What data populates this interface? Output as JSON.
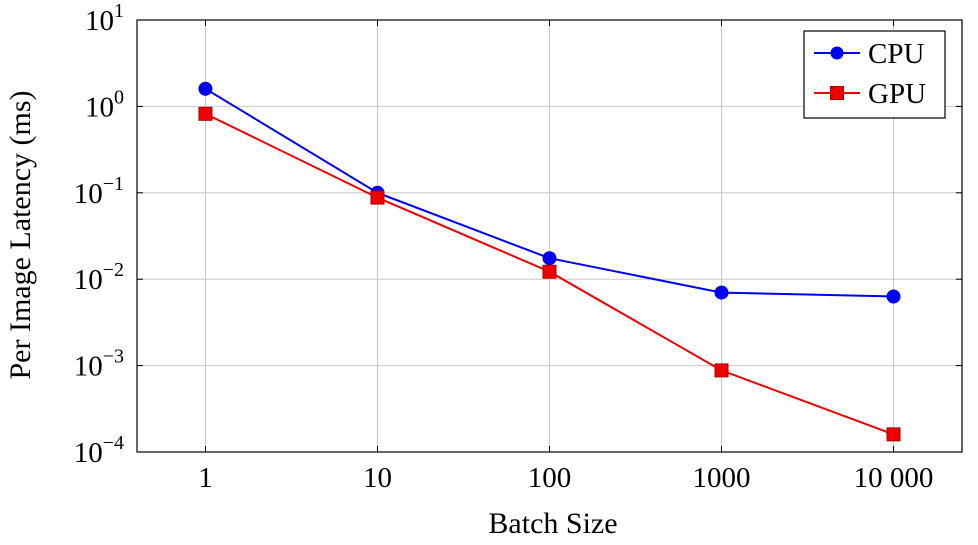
{
  "chart_data": {
    "type": "line",
    "xlabel": "Batch Size",
    "ylabel": "Per Image Latency (ms)",
    "x_scale": "log",
    "y_scale": "log",
    "x": [
      1,
      10,
      100,
      1000,
      10000
    ],
    "x_tick_labels": [
      "1",
      "10",
      "100",
      "1000",
      "10 000"
    ],
    "y_ticks": [
      {
        "value": 0.0001,
        "base": "10",
        "exp": "−4"
      },
      {
        "value": 0.001,
        "base": "10",
        "exp": "−3"
      },
      {
        "value": 0.01,
        "base": "10",
        "exp": "−2"
      },
      {
        "value": 0.1,
        "base": "10",
        "exp": "−1"
      },
      {
        "value": 1,
        "base": "10",
        "exp": "0"
      },
      {
        "value": 10,
        "base": "10",
        "exp": "1"
      }
    ],
    "xlim": [
      0.4,
      25000
    ],
    "ylim": [
      0.0001,
      10
    ],
    "grid": true,
    "legend_position": "top-right",
    "series": [
      {
        "name": "CPU",
        "color": "#0000ee",
        "marker": "circle",
        "values": [
          1.6,
          0.1,
          0.0175,
          0.007,
          0.0063
        ]
      },
      {
        "name": "GPU",
        "color": "#ee0000",
        "marker": "square",
        "values": [
          0.82,
          0.088,
          0.0122,
          0.00088,
          0.00016
        ]
      }
    ]
  }
}
